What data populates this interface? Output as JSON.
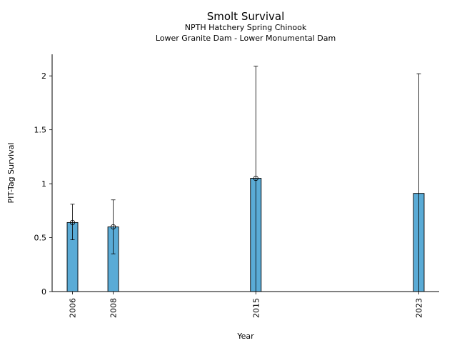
{
  "chart_data": {
    "type": "bar",
    "title": "Smolt Survival",
    "subtitle_lines": [
      "NPTH Hatchery Spring Chinook",
      "Lower Granite Dam - Lower Monumental Dam"
    ],
    "xlabel": "Year",
    "ylabel": "PIT-Tag Survival",
    "x_ticks": [
      2006,
      2008,
      2015,
      2023
    ],
    "y_ticks": [
      "0",
      "0.5",
      "1",
      "1.5",
      "2"
    ],
    "y_tick_values": [
      0,
      0.5,
      1,
      1.5,
      2
    ],
    "xlim": [
      2005.0,
      2024.0
    ],
    "ylim": [
      0,
      2.2
    ],
    "bar_color": "#5aabd6",
    "points": [
      {
        "year": 2006,
        "value": 0.64,
        "lower": 0.48,
        "upper": 0.81,
        "marker": true
      },
      {
        "year": 2008,
        "value": 0.6,
        "lower": 0.35,
        "upper": 0.85,
        "marker": true
      },
      {
        "year": 2015,
        "value": 1.05,
        "lower": 0.0,
        "upper": 2.09,
        "marker": true
      },
      {
        "year": 2023,
        "value": 0.91,
        "lower": 0.0,
        "upper": 2.02,
        "marker": false
      }
    ],
    "grid": false,
    "legend": "none"
  }
}
